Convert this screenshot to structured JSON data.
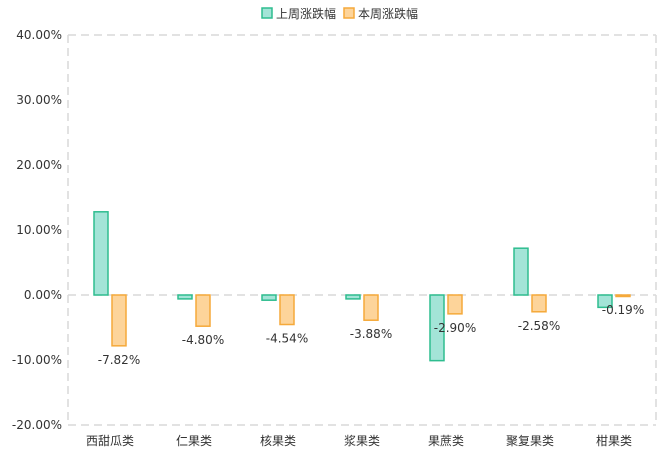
{
  "chart_data": {
    "type": "bar",
    "title": "",
    "xlabel": "",
    "ylabel": "",
    "categories": [
      "西甜瓜类",
      "仁果类",
      "核果类",
      "浆果类",
      "果蔗类",
      "聚复果类",
      "柑果类"
    ],
    "series": [
      {
        "name": "上周涨跌幅",
        "values": [
          12.8,
          -0.6,
          -0.8,
          -0.6,
          -10.1,
          7.2,
          -1.9
        ],
        "fill": "#a3e4d7",
        "stroke": "#2ebd8f"
      },
      {
        "name": "本周涨跌幅",
        "values": [
          -7.82,
          -4.8,
          -4.54,
          -3.88,
          -2.9,
          -2.58,
          -0.19
        ],
        "data_labels": [
          "-7.82%",
          "-4.80%",
          "-4.54%",
          "-3.88%",
          "-2.90%",
          "-2.58%",
          "-0.19%"
        ],
        "fill": "#fdd49a",
        "stroke": "#f5a93a"
      }
    ],
    "ylim": [
      -20,
      40
    ],
    "yticks": [
      "40.00%",
      "30.00%",
      "20.00%",
      "10.00%",
      "0.00%",
      "-10.00%",
      "-20.00%"
    ],
    "legend_position": "top-center",
    "grid": false
  }
}
